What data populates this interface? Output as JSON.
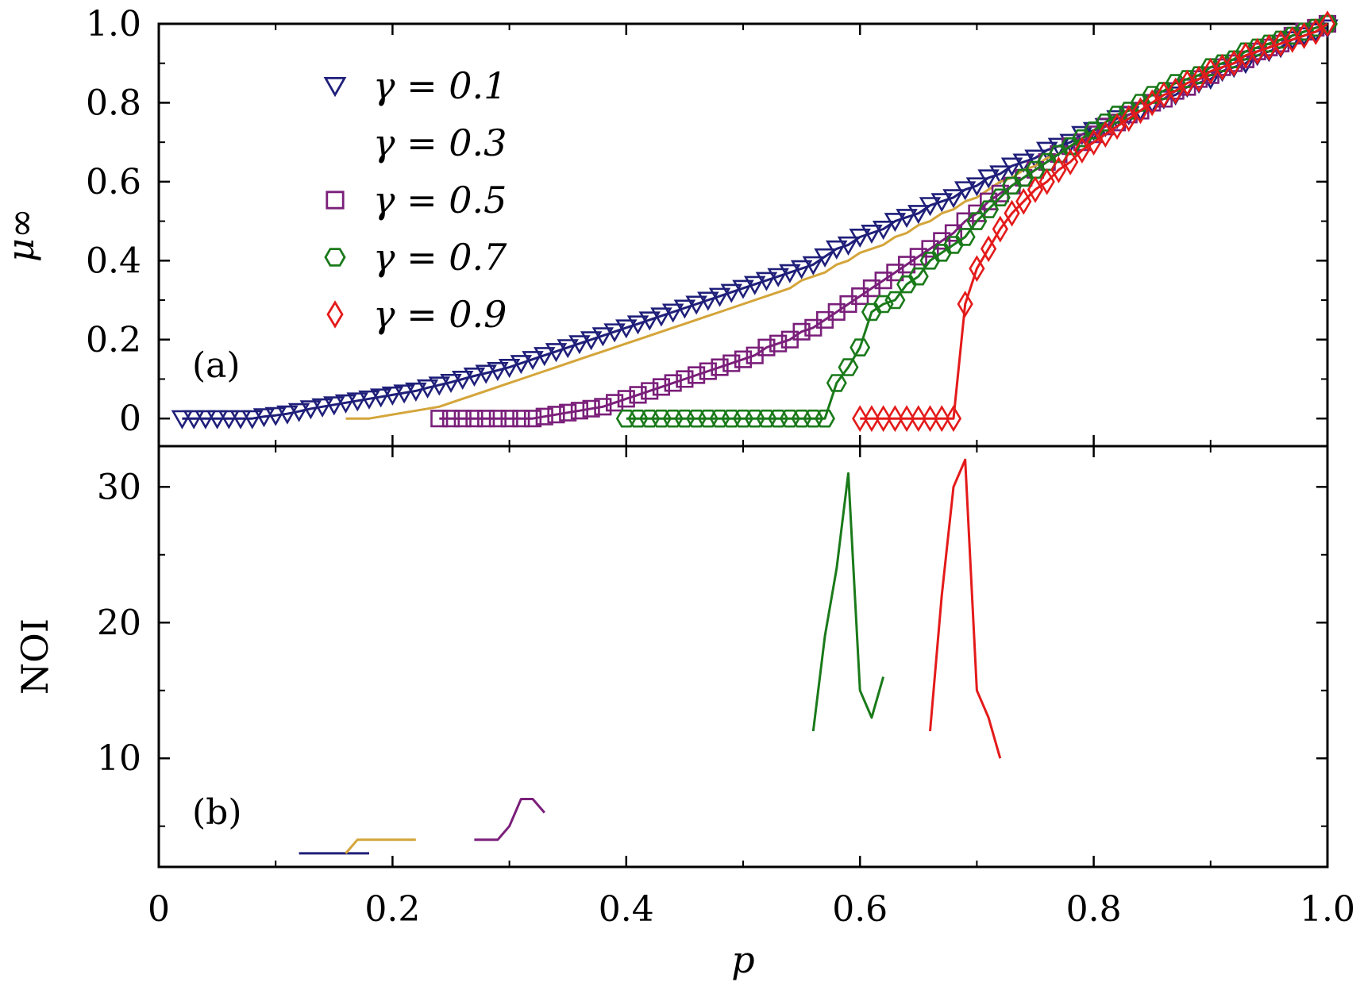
{
  "chart_data": {
    "type": "line",
    "x_axis": {
      "label": "p",
      "range": [
        0,
        1
      ],
      "ticks": [
        0,
        0.2,
        0.4,
        0.6,
        0.8,
        1.0
      ],
      "tick_labels": [
        "0",
        "0.2",
        "0.4",
        "0.6",
        "0.8",
        "1.0"
      ]
    },
    "panels": [
      {
        "id": "a",
        "label": "(a)",
        "ylabel": "μ∞",
        "ylim": [
          -0.07,
          1.0
        ],
        "yticks": [
          0,
          0.2,
          0.4,
          0.6,
          0.8,
          1.0
        ],
        "ytick_labels": [
          "0",
          "0.2",
          "0.4",
          "0.6",
          "0.8",
          "1.0"
        ],
        "series": [
          {
            "name": "γ = 0.1",
            "marker": "triangle-down",
            "color": "#1f1f7a",
            "x": [
              0.02,
              0.03,
              0.04,
              0.05,
              0.06,
              0.07,
              0.08,
              0.09,
              0.1,
              0.11,
              0.12,
              0.13,
              0.14,
              0.15,
              0.16,
              0.17,
              0.18,
              0.19,
              0.2,
              0.21,
              0.22,
              0.23,
              0.24,
              0.25,
              0.26,
              0.27,
              0.28,
              0.29,
              0.3,
              0.31,
              0.32,
              0.33,
              0.34,
              0.35,
              0.36,
              0.37,
              0.38,
              0.39,
              0.4,
              0.41,
              0.42,
              0.43,
              0.44,
              0.45,
              0.46,
              0.47,
              0.48,
              0.49,
              0.5,
              0.51,
              0.52,
              0.53,
              0.54,
              0.55,
              0.56,
              0.57,
              0.58,
              0.59,
              0.6,
              0.61,
              0.62,
              0.63,
              0.64,
              0.65,
              0.66,
              0.67,
              0.68,
              0.69,
              0.7,
              0.71,
              0.72,
              0.73,
              0.74,
              0.75,
              0.76,
              0.77,
              0.78,
              0.79,
              0.8,
              0.81,
              0.82,
              0.83,
              0.84,
              0.85,
              0.86,
              0.87,
              0.88,
              0.89,
              0.9,
              0.91,
              0.92,
              0.93,
              0.94,
              0.95,
              0.96,
              0.97,
              0.98,
              0.99,
              1.0
            ],
            "y": [
              0,
              0,
              0,
              0,
              0,
              0,
              0,
              0.005,
              0.008,
              0.012,
              0.018,
              0.025,
              0.03,
              0.035,
              0.04,
              0.045,
              0.05,
              0.055,
              0.06,
              0.065,
              0.07,
              0.078,
              0.085,
              0.092,
              0.1,
              0.108,
              0.115,
              0.122,
              0.13,
              0.14,
              0.15,
              0.16,
              0.17,
              0.18,
              0.19,
              0.2,
              0.21,
              0.22,
              0.23,
              0.24,
              0.25,
              0.26,
              0.27,
              0.28,
              0.29,
              0.3,
              0.31,
              0.32,
              0.33,
              0.34,
              0.35,
              0.36,
              0.37,
              0.38,
              0.39,
              0.41,
              0.43,
              0.44,
              0.46,
              0.47,
              0.48,
              0.5,
              0.51,
              0.52,
              0.54,
              0.55,
              0.56,
              0.58,
              0.59,
              0.61,
              0.62,
              0.64,
              0.65,
              0.66,
              0.68,
              0.69,
              0.7,
              0.72,
              0.73,
              0.74,
              0.76,
              0.77,
              0.78,
              0.8,
              0.81,
              0.82,
              0.84,
              0.85,
              0.86,
              0.88,
              0.89,
              0.9,
              0.92,
              0.93,
              0.94,
              0.96,
              0.97,
              0.98,
              0.99
            ]
          },
          {
            "name": "γ = 0.3",
            "marker": "circle",
            "color": "#d4a53a",
            "x": [
              0.16,
              0.17,
              0.18,
              0.19,
              0.2,
              0.21,
              0.22,
              0.23,
              0.24,
              0.25,
              0.26,
              0.27,
              0.28,
              0.29,
              0.3,
              0.31,
              0.32,
              0.33,
              0.34,
              0.35,
              0.36,
              0.37,
              0.38,
              0.39,
              0.4,
              0.41,
              0.42,
              0.43,
              0.44,
              0.45,
              0.46,
              0.47,
              0.48,
              0.49,
              0.5,
              0.51,
              0.52,
              0.53,
              0.54,
              0.55,
              0.56,
              0.57,
              0.58,
              0.59,
              0.6,
              0.61,
              0.62,
              0.63,
              0.64,
              0.65,
              0.66,
              0.67,
              0.68,
              0.69,
              0.7,
              0.71,
              0.72,
              0.73,
              0.74,
              0.75,
              0.76,
              0.77,
              0.78,
              0.79,
              0.8,
              0.81,
              0.82,
              0.83,
              0.84,
              0.85,
              0.86,
              0.87,
              0.88,
              0.89,
              0.9,
              0.91,
              0.92,
              0.93,
              0.94,
              0.95,
              0.96,
              0.97,
              0.98,
              0.99,
              1.0
            ],
            "y": [
              0,
              0,
              0,
              0.005,
              0.01,
              0.015,
              0.02,
              0.025,
              0.03,
              0.04,
              0.05,
              0.06,
              0.07,
              0.08,
              0.09,
              0.1,
              0.11,
              0.12,
              0.13,
              0.14,
              0.15,
              0.16,
              0.17,
              0.18,
              0.19,
              0.2,
              0.21,
              0.22,
              0.23,
              0.24,
              0.25,
              0.26,
              0.27,
              0.28,
              0.29,
              0.3,
              0.31,
              0.32,
              0.33,
              0.35,
              0.36,
              0.37,
              0.39,
              0.4,
              0.42,
              0.43,
              0.44,
              0.46,
              0.47,
              0.49,
              0.5,
              0.52,
              0.53,
              0.55,
              0.56,
              0.58,
              0.6,
              0.61,
              0.63,
              0.64,
              0.66,
              0.67,
              0.69,
              0.71,
              0.72,
              0.74,
              0.75,
              0.77,
              0.78,
              0.8,
              0.81,
              0.83,
              0.84,
              0.86,
              0.87,
              0.89,
              0.9,
              0.92,
              0.93,
              0.94,
              0.96,
              0.97,
              0.98,
              0.99,
              1.0
            ]
          },
          {
            "name": "γ = 0.5",
            "marker": "square",
            "color": "#7a1f7a",
            "x": [
              0.24,
              0.25,
              0.26,
              0.27,
              0.28,
              0.29,
              0.3,
              0.31,
              0.32,
              0.33,
              0.34,
              0.35,
              0.36,
              0.37,
              0.38,
              0.39,
              0.4,
              0.41,
              0.42,
              0.43,
              0.44,
              0.45,
              0.46,
              0.47,
              0.48,
              0.49,
              0.5,
              0.51,
              0.52,
              0.53,
              0.54,
              0.55,
              0.56,
              0.57,
              0.58,
              0.59,
              0.6,
              0.61,
              0.62,
              0.63,
              0.64,
              0.65,
              0.66,
              0.67,
              0.68,
              0.69,
              0.7,
              0.71,
              0.72,
              0.73,
              0.74,
              0.75,
              0.76,
              0.77,
              0.78,
              0.79,
              0.8,
              0.81,
              0.82,
              0.83,
              0.84,
              0.85,
              0.86,
              0.87,
              0.88,
              0.89,
              0.9,
              0.91,
              0.92,
              0.93,
              0.94,
              0.95,
              0.96,
              0.97,
              0.98,
              0.99,
              1.0
            ],
            "y": [
              0,
              0,
              0,
              0,
              0,
              0,
              0,
              0,
              0,
              0.005,
              0.01,
              0.015,
              0.02,
              0.025,
              0.03,
              0.04,
              0.05,
              0.06,
              0.07,
              0.08,
              0.09,
              0.1,
              0.11,
              0.12,
              0.13,
              0.14,
              0.15,
              0.16,
              0.18,
              0.19,
              0.2,
              0.22,
              0.23,
              0.25,
              0.27,
              0.29,
              0.31,
              0.33,
              0.35,
              0.37,
              0.39,
              0.41,
              0.43,
              0.45,
              0.47,
              0.5,
              0.52,
              0.55,
              0.57,
              0.59,
              0.61,
              0.63,
              0.65,
              0.67,
              0.69,
              0.7,
              0.72,
              0.74,
              0.75,
              0.77,
              0.78,
              0.8,
              0.81,
              0.83,
              0.84,
              0.86,
              0.87,
              0.89,
              0.9,
              0.91,
              0.93,
              0.94,
              0.95,
              0.97,
              0.98,
              0.99,
              1.0
            ]
          },
          {
            "name": "γ = 0.7",
            "marker": "hexagon",
            "color": "#1a7a1a",
            "x": [
              0.4,
              0.41,
              0.42,
              0.43,
              0.44,
              0.45,
              0.46,
              0.47,
              0.48,
              0.49,
              0.5,
              0.51,
              0.52,
              0.53,
              0.54,
              0.55,
              0.56,
              0.57,
              0.58,
              0.59,
              0.6,
              0.61,
              0.62,
              0.63,
              0.64,
              0.65,
              0.66,
              0.67,
              0.68,
              0.69,
              0.7,
              0.71,
              0.72,
              0.73,
              0.74,
              0.75,
              0.76,
              0.77,
              0.78,
              0.79,
              0.8,
              0.81,
              0.82,
              0.83,
              0.84,
              0.85,
              0.86,
              0.87,
              0.88,
              0.89,
              0.9,
              0.91,
              0.92,
              0.93,
              0.94,
              0.95,
              0.96,
              0.97,
              0.98,
              0.99,
              1.0
            ],
            "y": [
              0,
              0,
              0,
              0,
              0,
              0,
              0,
              0,
              0,
              0,
              0,
              0,
              0,
              0,
              0,
              0,
              0,
              0,
              0.09,
              0.13,
              0.18,
              0.27,
              0.29,
              0.3,
              0.34,
              0.36,
              0.4,
              0.42,
              0.44,
              0.46,
              0.5,
              0.53,
              0.56,
              0.59,
              0.61,
              0.63,
              0.65,
              0.67,
              0.69,
              0.71,
              0.73,
              0.75,
              0.77,
              0.78,
              0.8,
              0.82,
              0.83,
              0.85,
              0.86,
              0.87,
              0.89,
              0.9,
              0.91,
              0.93,
              0.94,
              0.95,
              0.96,
              0.97,
              0.98,
              0.99,
              1.0
            ]
          },
          {
            "name": "γ = 0.9",
            "marker": "diamond",
            "color": "#e41a1a",
            "x": [
              0.6,
              0.61,
              0.62,
              0.63,
              0.64,
              0.65,
              0.66,
              0.67,
              0.68,
              0.69,
              0.7,
              0.71,
              0.72,
              0.73,
              0.74,
              0.75,
              0.76,
              0.77,
              0.78,
              0.79,
              0.8,
              0.81,
              0.82,
              0.83,
              0.84,
              0.85,
              0.86,
              0.87,
              0.88,
              0.89,
              0.9,
              0.91,
              0.92,
              0.93,
              0.94,
              0.95,
              0.96,
              0.97,
              0.98,
              0.99,
              1.0
            ],
            "y": [
              0,
              0,
              0,
              0,
              0,
              0,
              0,
              0,
              0,
              0.29,
              0.38,
              0.43,
              0.48,
              0.52,
              0.55,
              0.58,
              0.6,
              0.63,
              0.65,
              0.68,
              0.7,
              0.72,
              0.74,
              0.76,
              0.78,
              0.8,
              0.82,
              0.83,
              0.85,
              0.86,
              0.88,
              0.89,
              0.9,
              0.92,
              0.93,
              0.94,
              0.95,
              0.96,
              0.97,
              0.98,
              1.0
            ]
          }
        ]
      },
      {
        "id": "b",
        "label": "(b)",
        "ylabel": "NOI",
        "ylim": [
          2,
          33
        ],
        "yticks": [
          10,
          20,
          30
        ],
        "ytick_labels": [
          "10",
          "20",
          "30"
        ],
        "minor_yticks": [
          5,
          15,
          25
        ],
        "series": [
          {
            "name": "γ = 0.1",
            "color": "#1f1f7a",
            "x": [
              0.12,
              0.14,
              0.16,
              0.18
            ],
            "y": [
              3,
              3,
              3,
              3
            ]
          },
          {
            "name": "γ = 0.3",
            "color": "#d4a53a",
            "x": [
              0.16,
              0.17,
              0.18,
              0.2,
              0.22
            ],
            "y": [
              3,
              4,
              4,
              4,
              4
            ]
          },
          {
            "name": "γ = 0.5",
            "color": "#7a1f7a",
            "x": [
              0.27,
              0.28,
              0.29,
              0.3,
              0.31,
              0.32,
              0.33
            ],
            "y": [
              4,
              4,
              4,
              5,
              7,
              7,
              6
            ]
          },
          {
            "name": "γ = 0.7",
            "color": "#1a7a1a",
            "x": [
              0.56,
              0.57,
              0.58,
              0.59,
              0.6,
              0.61,
              0.62
            ],
            "y": [
              12,
              19,
              24,
              31,
              15,
              13,
              16
            ]
          },
          {
            "name": "γ = 0.9",
            "color": "#e41a1a",
            "x": [
              0.66,
              0.67,
              0.68,
              0.69,
              0.7,
              0.71,
              0.72
            ],
            "y": [
              12,
              22,
              30,
              32,
              15,
              13,
              10
            ]
          }
        ]
      }
    ]
  }
}
